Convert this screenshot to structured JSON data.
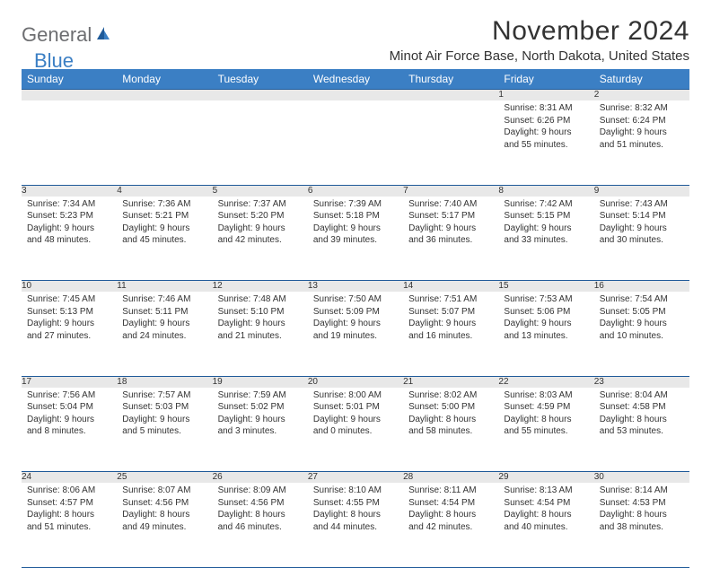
{
  "logo": {
    "text1": "General",
    "text2": "Blue"
  },
  "title": "November 2024",
  "location": "Minot Air Force Base, North Dakota, United States",
  "colors": {
    "header_bg": "#3b7fc4",
    "header_border": "#1f5a99",
    "daynum_bg": "#e8e8e8",
    "text": "#333333",
    "logo_gray": "#6d6e71",
    "logo_blue": "#3b7fc4"
  },
  "weekdays": [
    "Sunday",
    "Monday",
    "Tuesday",
    "Wednesday",
    "Thursday",
    "Friday",
    "Saturday"
  ],
  "weeks": [
    [
      null,
      null,
      null,
      null,
      null,
      {
        "n": "1",
        "sr": "Sunrise: 8:31 AM",
        "ss": "Sunset: 6:26 PM",
        "d1": "Daylight: 9 hours",
        "d2": "and 55 minutes."
      },
      {
        "n": "2",
        "sr": "Sunrise: 8:32 AM",
        "ss": "Sunset: 6:24 PM",
        "d1": "Daylight: 9 hours",
        "d2": "and 51 minutes."
      }
    ],
    [
      {
        "n": "3",
        "sr": "Sunrise: 7:34 AM",
        "ss": "Sunset: 5:23 PM",
        "d1": "Daylight: 9 hours",
        "d2": "and 48 minutes."
      },
      {
        "n": "4",
        "sr": "Sunrise: 7:36 AM",
        "ss": "Sunset: 5:21 PM",
        "d1": "Daylight: 9 hours",
        "d2": "and 45 minutes."
      },
      {
        "n": "5",
        "sr": "Sunrise: 7:37 AM",
        "ss": "Sunset: 5:20 PM",
        "d1": "Daylight: 9 hours",
        "d2": "and 42 minutes."
      },
      {
        "n": "6",
        "sr": "Sunrise: 7:39 AM",
        "ss": "Sunset: 5:18 PM",
        "d1": "Daylight: 9 hours",
        "d2": "and 39 minutes."
      },
      {
        "n": "7",
        "sr": "Sunrise: 7:40 AM",
        "ss": "Sunset: 5:17 PM",
        "d1": "Daylight: 9 hours",
        "d2": "and 36 minutes."
      },
      {
        "n": "8",
        "sr": "Sunrise: 7:42 AM",
        "ss": "Sunset: 5:15 PM",
        "d1": "Daylight: 9 hours",
        "d2": "and 33 minutes."
      },
      {
        "n": "9",
        "sr": "Sunrise: 7:43 AM",
        "ss": "Sunset: 5:14 PM",
        "d1": "Daylight: 9 hours",
        "d2": "and 30 minutes."
      }
    ],
    [
      {
        "n": "10",
        "sr": "Sunrise: 7:45 AM",
        "ss": "Sunset: 5:13 PM",
        "d1": "Daylight: 9 hours",
        "d2": "and 27 minutes."
      },
      {
        "n": "11",
        "sr": "Sunrise: 7:46 AM",
        "ss": "Sunset: 5:11 PM",
        "d1": "Daylight: 9 hours",
        "d2": "and 24 minutes."
      },
      {
        "n": "12",
        "sr": "Sunrise: 7:48 AM",
        "ss": "Sunset: 5:10 PM",
        "d1": "Daylight: 9 hours",
        "d2": "and 21 minutes."
      },
      {
        "n": "13",
        "sr": "Sunrise: 7:50 AM",
        "ss": "Sunset: 5:09 PM",
        "d1": "Daylight: 9 hours",
        "d2": "and 19 minutes."
      },
      {
        "n": "14",
        "sr": "Sunrise: 7:51 AM",
        "ss": "Sunset: 5:07 PM",
        "d1": "Daylight: 9 hours",
        "d2": "and 16 minutes."
      },
      {
        "n": "15",
        "sr": "Sunrise: 7:53 AM",
        "ss": "Sunset: 5:06 PM",
        "d1": "Daylight: 9 hours",
        "d2": "and 13 minutes."
      },
      {
        "n": "16",
        "sr": "Sunrise: 7:54 AM",
        "ss": "Sunset: 5:05 PM",
        "d1": "Daylight: 9 hours",
        "d2": "and 10 minutes."
      }
    ],
    [
      {
        "n": "17",
        "sr": "Sunrise: 7:56 AM",
        "ss": "Sunset: 5:04 PM",
        "d1": "Daylight: 9 hours",
        "d2": "and 8 minutes."
      },
      {
        "n": "18",
        "sr": "Sunrise: 7:57 AM",
        "ss": "Sunset: 5:03 PM",
        "d1": "Daylight: 9 hours",
        "d2": "and 5 minutes."
      },
      {
        "n": "19",
        "sr": "Sunrise: 7:59 AM",
        "ss": "Sunset: 5:02 PM",
        "d1": "Daylight: 9 hours",
        "d2": "and 3 minutes."
      },
      {
        "n": "20",
        "sr": "Sunrise: 8:00 AM",
        "ss": "Sunset: 5:01 PM",
        "d1": "Daylight: 9 hours",
        "d2": "and 0 minutes."
      },
      {
        "n": "21",
        "sr": "Sunrise: 8:02 AM",
        "ss": "Sunset: 5:00 PM",
        "d1": "Daylight: 8 hours",
        "d2": "and 58 minutes."
      },
      {
        "n": "22",
        "sr": "Sunrise: 8:03 AM",
        "ss": "Sunset: 4:59 PM",
        "d1": "Daylight: 8 hours",
        "d2": "and 55 minutes."
      },
      {
        "n": "23",
        "sr": "Sunrise: 8:04 AM",
        "ss": "Sunset: 4:58 PM",
        "d1": "Daylight: 8 hours",
        "d2": "and 53 minutes."
      }
    ],
    [
      {
        "n": "24",
        "sr": "Sunrise: 8:06 AM",
        "ss": "Sunset: 4:57 PM",
        "d1": "Daylight: 8 hours",
        "d2": "and 51 minutes."
      },
      {
        "n": "25",
        "sr": "Sunrise: 8:07 AM",
        "ss": "Sunset: 4:56 PM",
        "d1": "Daylight: 8 hours",
        "d2": "and 49 minutes."
      },
      {
        "n": "26",
        "sr": "Sunrise: 8:09 AM",
        "ss": "Sunset: 4:56 PM",
        "d1": "Daylight: 8 hours",
        "d2": "and 46 minutes."
      },
      {
        "n": "27",
        "sr": "Sunrise: 8:10 AM",
        "ss": "Sunset: 4:55 PM",
        "d1": "Daylight: 8 hours",
        "d2": "and 44 minutes."
      },
      {
        "n": "28",
        "sr": "Sunrise: 8:11 AM",
        "ss": "Sunset: 4:54 PM",
        "d1": "Daylight: 8 hours",
        "d2": "and 42 minutes."
      },
      {
        "n": "29",
        "sr": "Sunrise: 8:13 AM",
        "ss": "Sunset: 4:54 PM",
        "d1": "Daylight: 8 hours",
        "d2": "and 40 minutes."
      },
      {
        "n": "30",
        "sr": "Sunrise: 8:14 AM",
        "ss": "Sunset: 4:53 PM",
        "d1": "Daylight: 8 hours",
        "d2": "and 38 minutes."
      }
    ]
  ]
}
